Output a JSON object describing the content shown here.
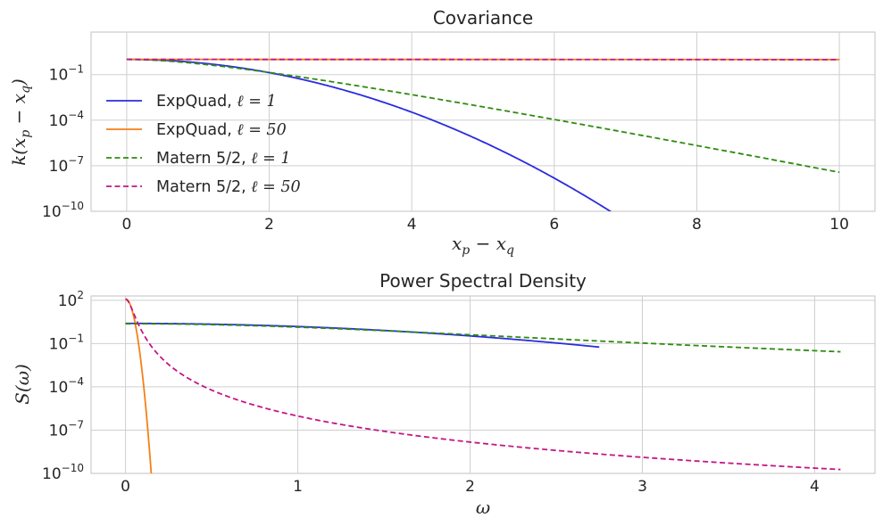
{
  "colors": {
    "expquad_1": "#2b2be0",
    "expquad_50": "#f57f17",
    "matern_1": "#2e8b0f",
    "matern_50": "#c41685"
  },
  "chart_data": [
    {
      "type": "line",
      "title": "Covariance",
      "xlabel": "x_p − x_q",
      "ylabel": "k(x_p − x_q)",
      "yscale": "log",
      "xlim": [
        -0.5,
        10.5
      ],
      "ylim_log10": [
        -10,
        1.8
      ],
      "xticks": [
        0,
        2,
        4,
        6,
        8,
        10
      ],
      "xtick_labels": [
        "0",
        "2",
        "4",
        "6",
        "8",
        "10"
      ],
      "yticks_exp": [
        -1,
        -4,
        -7,
        -10
      ],
      "ytick_base": "10",
      "ytick_exps": [
        "−1",
        "−4",
        "−7",
        "−10"
      ],
      "legend": {
        "location": "center-left",
        "entries": [
          {
            "label_main": "ExpQuad, ",
            "label_math": "ℓ = 1",
            "series": "expquad_1",
            "dash": "solid"
          },
          {
            "label_main": "ExpQuad, ",
            "label_math": "ℓ = 50",
            "series": "expquad_50",
            "dash": "solid"
          },
          {
            "label_main": "Matern 5/2, ",
            "label_math": "ℓ = 1",
            "series": "matern_1",
            "dash": "dashed"
          },
          {
            "label_main": "Matern 5/2, ",
            "label_math": "ℓ = 50",
            "series": "matern_50",
            "dash": "dashed"
          }
        ]
      },
      "series": [
        {
          "name": "ExpQuad, ℓ=1",
          "key": "expquad_1",
          "function": "exp(-x^2/2)",
          "x_range": [
            0,
            10
          ]
        },
        {
          "name": "ExpQuad, ℓ=50",
          "key": "expquad_50",
          "function": "exp(-x^2/5000)",
          "x_range": [
            0,
            10
          ]
        },
        {
          "name": "Matern 5/2, ℓ=1",
          "key": "matern_1",
          "function": "(1+√5x+5x²/3)exp(-√5x)",
          "x_range": [
            0,
            10
          ]
        },
        {
          "name": "Matern 5/2, ℓ=50",
          "key": "matern_50",
          "function": "matern52 with ℓ=50",
          "x_range": [
            0,
            10
          ]
        }
      ]
    },
    {
      "type": "line",
      "title": "Power Spectral Density",
      "xlabel": "ω",
      "ylabel": "S(ω)",
      "yscale": "log",
      "xlim": [
        -0.2,
        4.35
      ],
      "ylim_log10": [
        -10,
        2.3
      ],
      "xticks": [
        0,
        1,
        2,
        3,
        4
      ],
      "xtick_labels": [
        "0",
        "1",
        "2",
        "3",
        "4"
      ],
      "yticks_exp": [
        2,
        -1,
        -4,
        -7,
        -10
      ],
      "ytick_base": "10",
      "ytick_exps": [
        "2",
        "−1",
        "−4",
        "−7",
        "−10"
      ],
      "series": [
        {
          "name": "ExpQuad, ℓ=1",
          "key": "expquad_1",
          "function": "√(2π)exp(-ω²/2)",
          "x_range": [
            0,
            2.75
          ]
        },
        {
          "name": "ExpQuad, ℓ=50",
          "key": "expquad_50",
          "function": "50√(2π)exp(-1250ω²)",
          "x_range": [
            0,
            0.15
          ]
        },
        {
          "name": "Matern 5/2, ℓ=1",
          "key": "matern_1",
          "function": "(400√5/3)/(5+ω²)^3",
          "x_range": [
            0,
            4.15
          ]
        },
        {
          "name": "Matern 5/2, ℓ=50",
          "key": "matern_50",
          "function": "matern52 PSD with ℓ=50",
          "x_range": [
            0,
            4.15
          ]
        }
      ]
    }
  ]
}
